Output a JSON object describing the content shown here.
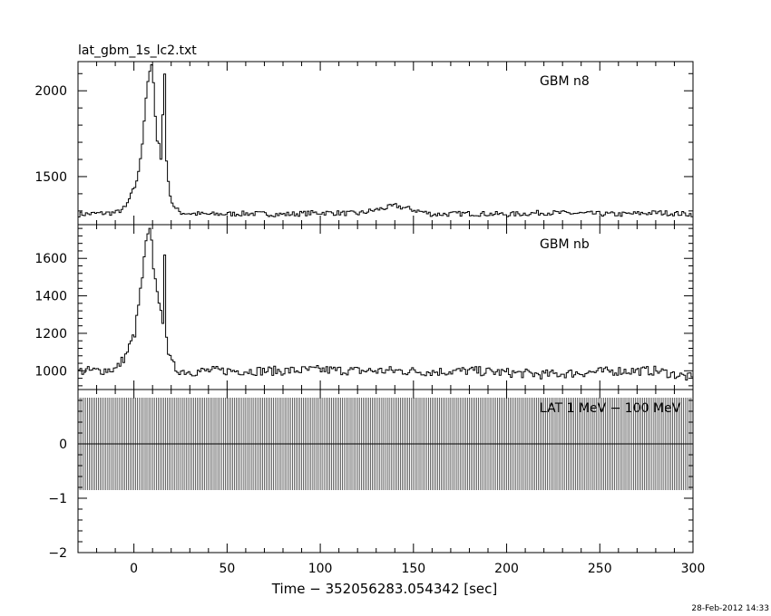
{
  "file_title": "lat_gbm_1s_lc2.txt",
  "xlabel": "Time − 352056283.054342 [sec]",
  "timestamp": "28-Feb-2012 14:33",
  "chart_data": [
    {
      "type": "line",
      "panel": "top",
      "label": "GBM n8",
      "xlim": [
        -30,
        300
      ],
      "ylim": [
        1220,
        2170
      ],
      "yticks": [
        1500,
        2000
      ],
      "x": [
        -30,
        -20,
        -10,
        -5,
        0,
        2,
        4,
        6,
        7,
        8,
        9,
        10,
        11,
        12,
        13,
        14,
        15,
        16,
        17,
        18,
        19,
        20,
        22,
        25,
        30,
        40,
        60,
        80,
        100,
        120,
        140,
        160,
        180,
        200,
        220,
        240,
        260,
        280,
        300
      ],
      "y": [
        1280,
        1285,
        1290,
        1320,
        1440,
        1520,
        1700,
        1960,
        2060,
        2100,
        2150,
        2040,
        1840,
        1720,
        1700,
        1600,
        1860,
        2100,
        1600,
        1460,
        1400,
        1350,
        1310,
        1290,
        1285,
        1280,
        1285,
        1280,
        1290,
        1285,
        1330,
        1280,
        1285,
        1280,
        1290,
        1285,
        1280,
        1290,
        1280
      ],
      "noise": 15
    },
    {
      "type": "line",
      "panel": "middle",
      "label": "GBM nb",
      "xlim": [
        -30,
        300
      ],
      "ylim": [
        900,
        1780
      ],
      "yticks": [
        1000,
        1200,
        1400,
        1600
      ],
      "x": [
        -30,
        -20,
        -10,
        -5,
        0,
        2,
        4,
        6,
        7,
        8,
        9,
        10,
        11,
        12,
        13,
        14,
        15,
        16,
        17,
        18,
        19,
        20,
        22,
        25,
        30,
        40,
        60,
        80,
        100,
        120,
        140,
        160,
        180,
        200,
        220,
        240,
        260,
        280,
        300
      ],
      "y": [
        1000,
        1000,
        1010,
        1080,
        1200,
        1350,
        1500,
        1680,
        1720,
        1740,
        1680,
        1560,
        1480,
        1440,
        1380,
        1300,
        1230,
        1640,
        1200,
        1100,
        1060,
        1040,
        1010,
        1000,
        995,
        1000,
        1000,
        1000,
        1005,
        1000,
        1000,
        995,
        1000,
        990,
        980,
        990,
        1000,
        1000,
        960
      ],
      "noise": 25
    },
    {
      "type": "bar",
      "panel": "bottom",
      "label": "LAT 1 MeV − 100 MeV",
      "xlim": [
        -30,
        300
      ],
      "ylim": [
        -2,
        1
      ],
      "yticks": [
        -2,
        -1,
        0
      ],
      "baseline": 0,
      "error_range": [
        -0.85,
        0.85
      ],
      "bin_width_sec": 1
    }
  ],
  "xticks": [
    0,
    50,
    100,
    150,
    200,
    250,
    300
  ]
}
